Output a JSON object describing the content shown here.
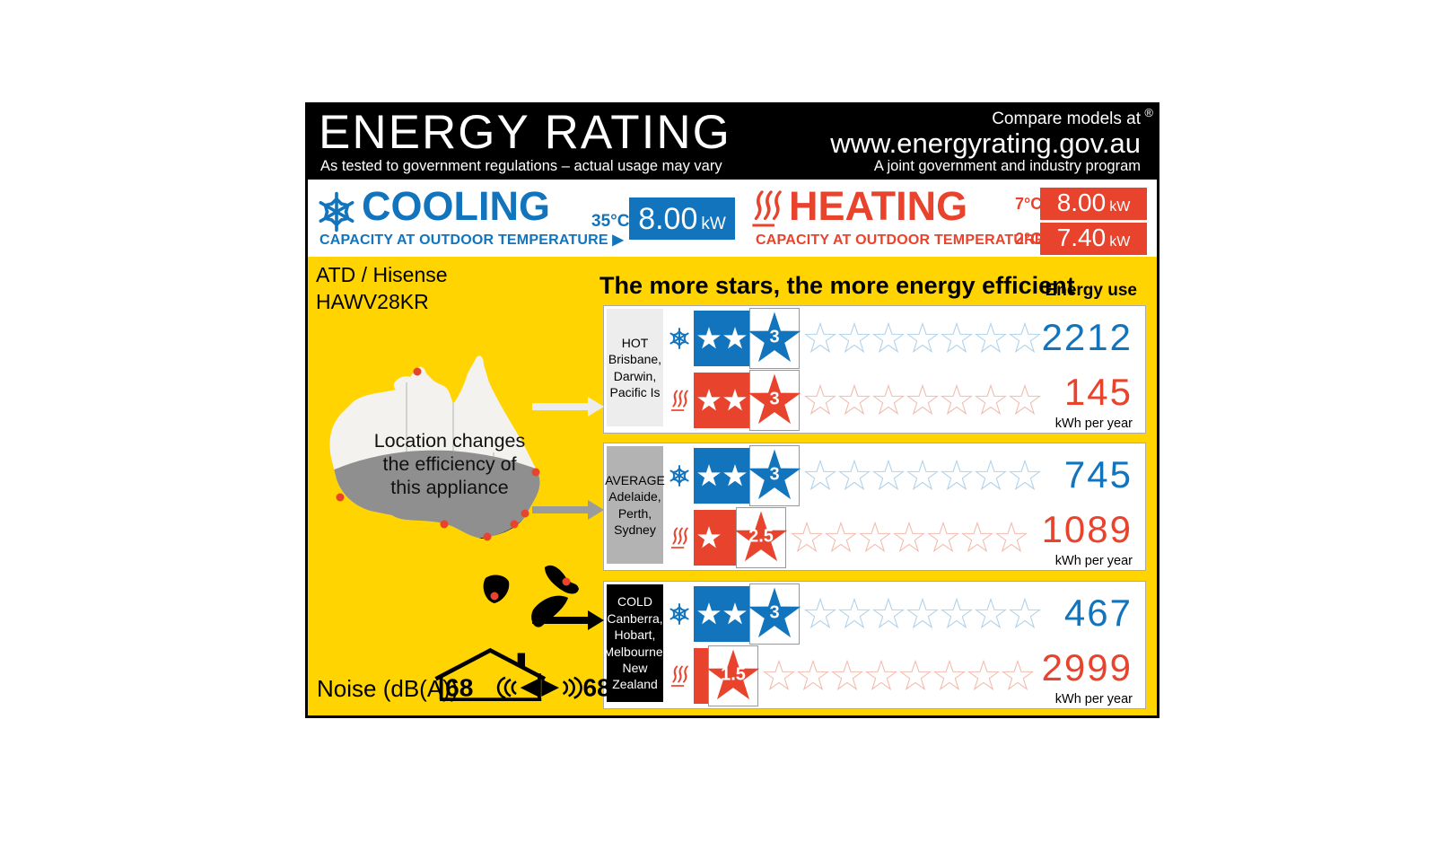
{
  "header": {
    "title": "ENERGY RATING",
    "subtitle": "As tested to government regulations – actual usage may vary",
    "compare": "Compare models at",
    "url": "www.energyrating.gov.au",
    "program": "A joint government and industry program",
    "registered_mark": "®"
  },
  "cooling": {
    "label": "COOLING",
    "caption": "CAPACITY AT OUTDOOR TEMPERATURE ▶",
    "temp": "35°C",
    "value": "8.00",
    "unit": "kW"
  },
  "heating": {
    "label": "HEATING",
    "caption": "CAPACITY AT OUTDOOR TEMPERATURE ▶",
    "entries": [
      {
        "temp": "7°C",
        "value": "8.00",
        "unit": "kW"
      },
      {
        "temp": "2°C",
        "value": "7.40",
        "unit": "kW"
      }
    ]
  },
  "model": {
    "brand": "ATD / Hisense",
    "number": "HAWV28KR"
  },
  "stars_heading": "The more stars, the more energy efficient",
  "energy_use_label": "Energy use",
  "map_text": [
    "Location changes",
    "the efficiency of",
    "this appliance"
  ],
  "zones": [
    {
      "name": "HOT",
      "cities": [
        "Brisbane,",
        "Darwin,",
        "Pacific Is"
      ],
      "label_bg": "#ededed",
      "label_fg": "#000000",
      "arrow_color": "#ececec",
      "cooling": {
        "stars": 3,
        "kwh": "2212"
      },
      "heating": {
        "stars": 3,
        "kwh": "145"
      }
    },
    {
      "name": "AVERAGE",
      "cities": [
        "Adelaide,",
        "Perth,",
        "Sydney"
      ],
      "label_bg": "#b3b3b3",
      "label_fg": "#000000",
      "arrow_color": "#9b9b9b",
      "cooling": {
        "stars": 3,
        "kwh": "745"
      },
      "heating": {
        "stars": 2.5,
        "kwh": "1089"
      }
    },
    {
      "name": "COLD",
      "cities": [
        "Canberra,",
        "Hobart,",
        "Melbourne,",
        "New Zealand"
      ],
      "label_bg": "#000000",
      "label_fg": "#ffffff",
      "arrow_color": "#000000",
      "cooling": {
        "stars": 3,
        "kwh": "467"
      },
      "heating": {
        "stars": 1.5,
        "kwh": "2999"
      }
    }
  ],
  "kwh_unit": "kWh per year",
  "noise": {
    "label": "Noise (dB(A))",
    "indoor": "68",
    "outdoor": "68"
  },
  "colors": {
    "blue": "#1274bd",
    "blue_light": "#b0d2ea",
    "red": "#e8432d",
    "red_light": "#f2bcae",
    "yellow": "#ffd400"
  }
}
